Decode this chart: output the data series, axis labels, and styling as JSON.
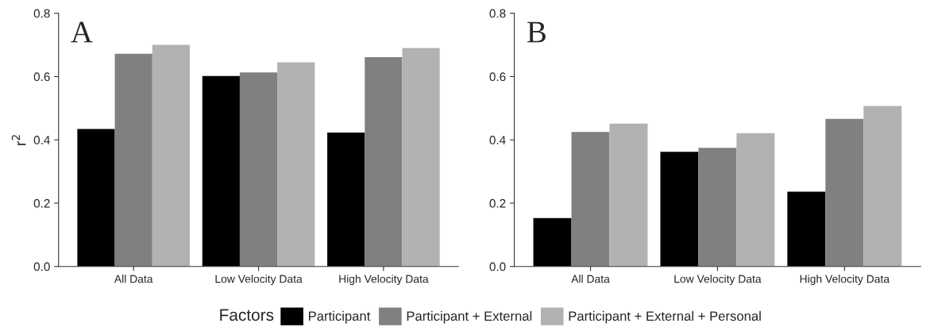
{
  "chart_data": [
    {
      "type": "bar",
      "categories": [
        "All Data",
        "Low Velocity Data",
        "High Velocity Data"
      ],
      "ylabel": "r$^{2}$",
      "ylim": [
        0,
        0.8
      ],
      "yticks": [
        {
          "value": 0,
          "label": "0.0"
        },
        0.2,
        0.4,
        0.6,
        0.8
      ],
      "annotations": [
        "A"
      ],
      "legend": "bottom",
      "legend_title": "Factors",
      "grid": false,
      "series": [
        {
          "name": "Participant",
          "color": "#000000",
          "values": [
            0.434,
            0.602,
            0.423
          ]
        },
        {
          "name": "Participant + External",
          "color": "#808080",
          "values": [
            0.672,
            0.613,
            0.661
          ]
        },
        {
          "name": "Participant + External + Personal",
          "color": "#b2b2b2",
          "values": [
            0.7,
            0.645,
            0.69
          ]
        }
      ]
    },
    {
      "type": "bar",
      "categories": [
        "All Data",
        "Low Velocity Data",
        "High Velocity Data"
      ],
      "ylim": [
        0,
        0.8
      ],
      "yticks": [
        {
          "value": 0,
          "label": "0.0"
        },
        0.2,
        0.4,
        0.6,
        0.8
      ],
      "annotations": [
        "B"
      ],
      "grid": false,
      "series": [
        {
          "color": "#000000",
          "values": [
            0.153,
            0.362,
            0.236
          ]
        },
        {
          "color": "#808080",
          "values": [
            0.425,
            0.375,
            0.466
          ]
        },
        {
          "color": "#b2b2b2",
          "values": [
            0.451,
            0.421,
            0.507
          ]
        }
      ]
    }
  ]
}
